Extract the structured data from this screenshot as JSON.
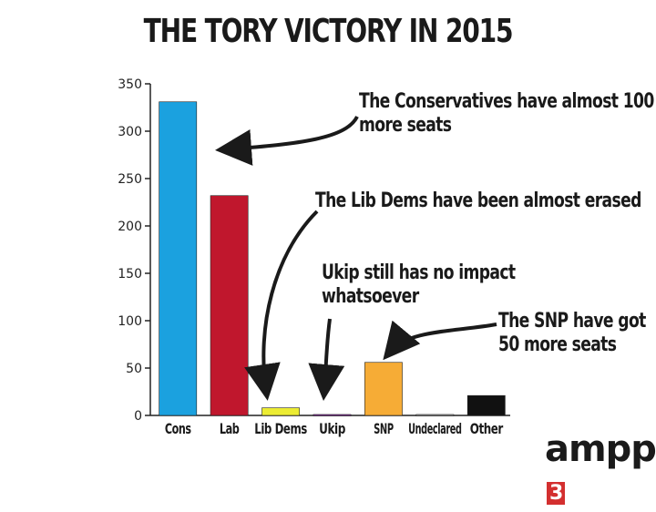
{
  "chart_data": {
    "type": "bar",
    "title": "THE TORY VICTORY IN 2015",
    "categories": [
      "Cons",
      "Lab",
      "Lib Dems",
      "Ukip",
      "SNP",
      "Undeclared",
      "Other"
    ],
    "values": [
      331,
      232,
      8,
      1,
      56,
      1,
      21
    ],
    "colors": [
      "#1ba1df",
      "#c0172d",
      "#ecec33",
      "#7b2a8e",
      "#f6ac36",
      "#888888",
      "#111111"
    ],
    "ylim": [
      0,
      350
    ],
    "yticks": [
      0,
      50,
      100,
      150,
      200,
      250,
      300,
      350
    ],
    "grid": false,
    "xlabel": "",
    "ylabel": ""
  },
  "annotations": {
    "cons": [
      "The Conservatives have almost 100",
      "more seats"
    ],
    "libdems": [
      "The Lib Dems have been almost erased"
    ],
    "ukip": [
      "Ukip still has no impact",
      "whatsoever"
    ],
    "snp": [
      "The SNP have got",
      "50 more seats"
    ]
  },
  "logo": {
    "text": "ampp",
    "accent": "3"
  }
}
